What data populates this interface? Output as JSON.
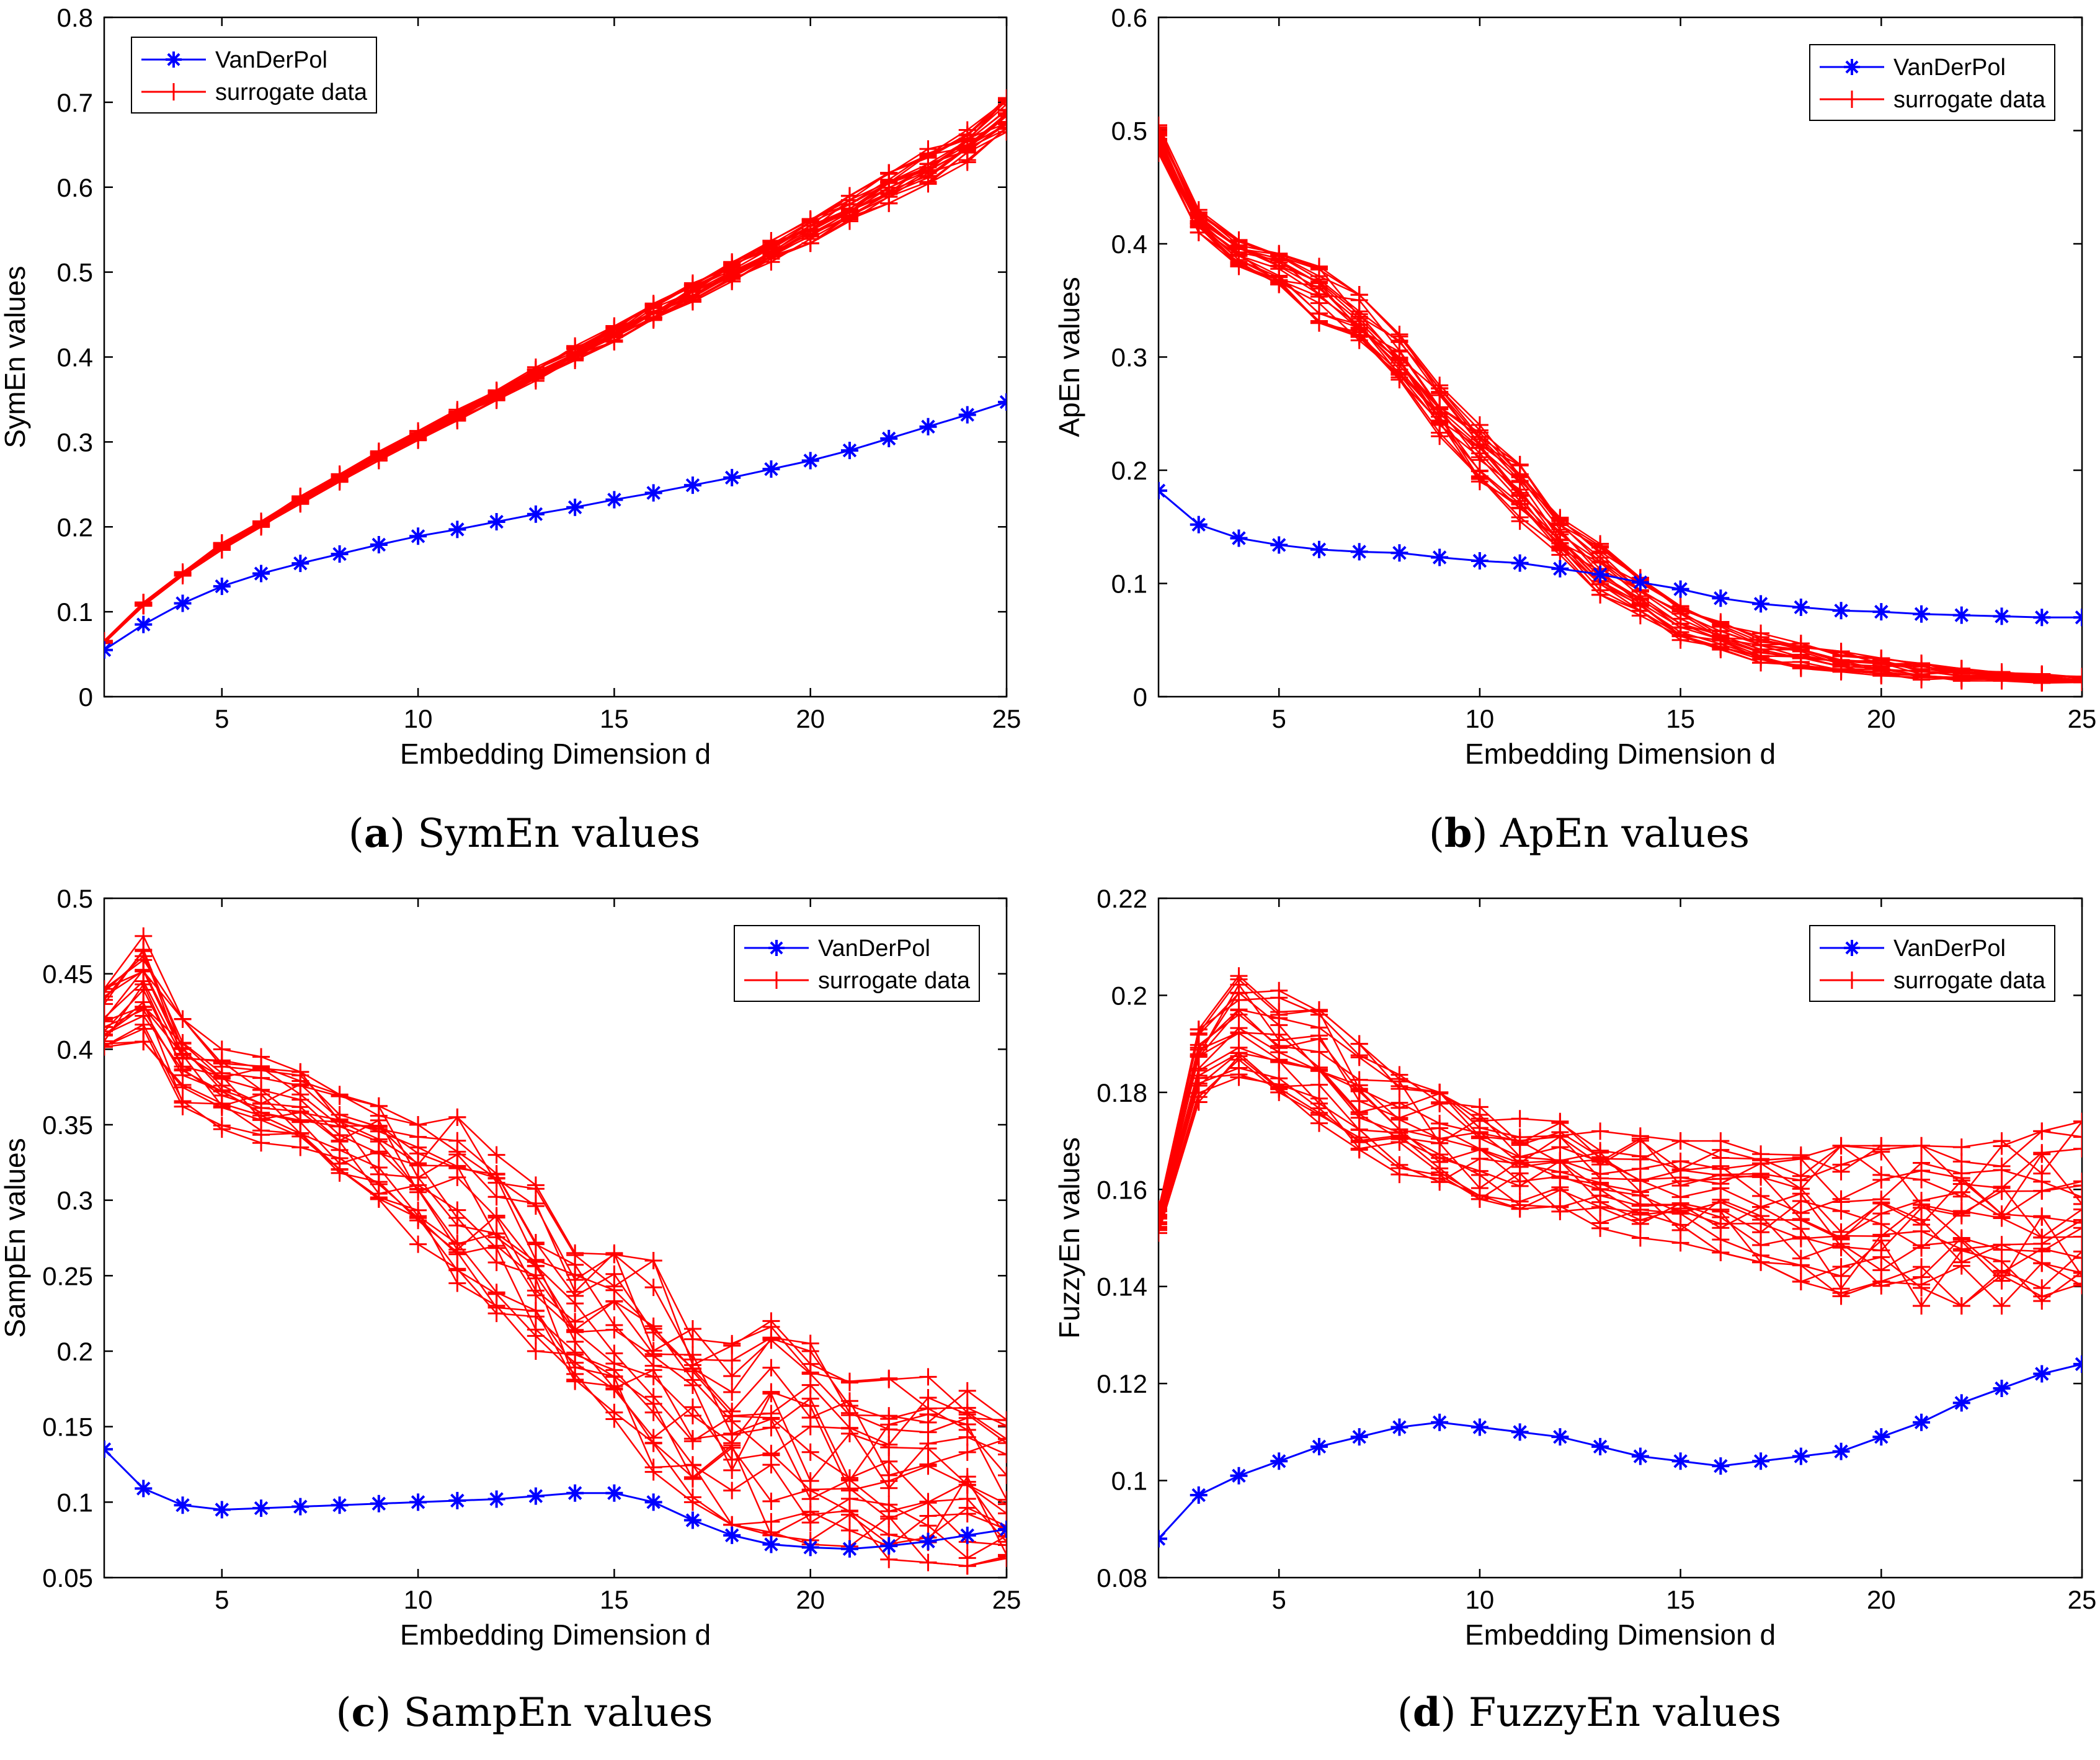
{
  "figure": {
    "colors": {
      "vanderpol": "#0000ff",
      "surrogate": "#ff0000",
      "axis": "#000000"
    }
  },
  "chart_data": [
    {
      "id": "a",
      "type": "line",
      "caption_letter": "a",
      "caption_text": "SymEn values",
      "xlabel": "Embedding Dimension d",
      "ylabel": "SymEn values",
      "xlim": [
        2,
        25
      ],
      "ylim": [
        0,
        0.8
      ],
      "xticks": [
        5,
        10,
        15,
        20,
        25
      ],
      "yticks": [
        0,
        0.1,
        0.2,
        0.3,
        0.4,
        0.5,
        0.6,
        0.7,
        0.8
      ],
      "legend_position": "top-left",
      "legend": [
        "VanDerPol",
        "surrogate data"
      ],
      "x": [
        2,
        3,
        4,
        5,
        6,
        7,
        8,
        9,
        10,
        11,
        12,
        13,
        14,
        15,
        16,
        17,
        18,
        19,
        20,
        21,
        22,
        23,
        24,
        25
      ],
      "vanderpol": [
        0.055,
        0.085,
        0.11,
        0.13,
        0.145,
        0.157,
        0.168,
        0.179,
        0.189,
        0.197,
        0.206,
        0.215,
        0.223,
        0.232,
        0.24,
        0.249,
        0.258,
        0.268,
        0.278,
        0.29,
        0.304,
        0.318,
        0.332,
        0.347
      ],
      "surrogate_envelope": {
        "low": [
          0.063,
          0.107,
          0.142,
          0.173,
          0.2,
          0.227,
          0.253,
          0.278,
          0.302,
          0.325,
          0.349,
          0.372,
          0.396,
          0.418,
          0.442,
          0.465,
          0.489,
          0.512,
          0.534,
          0.558,
          0.581,
          0.604,
          0.629,
          0.665
        ],
        "high": [
          0.066,
          0.111,
          0.147,
          0.181,
          0.207,
          0.236,
          0.262,
          0.289,
          0.313,
          0.338,
          0.363,
          0.388,
          0.413,
          0.437,
          0.463,
          0.487,
          0.512,
          0.537,
          0.563,
          0.59,
          0.617,
          0.645,
          0.671,
          0.705
        ]
      },
      "surrogate_count": 20
    },
    {
      "id": "b",
      "type": "line",
      "caption_letter": "b",
      "caption_text": "ApEn values",
      "xlabel": "Embedding Dimension d",
      "ylabel": "ApEn values",
      "xlim": [
        2,
        25
      ],
      "ylim": [
        0,
        0.6
      ],
      "xticks": [
        5,
        10,
        15,
        20,
        25
      ],
      "yticks": [
        0,
        0.1,
        0.2,
        0.3,
        0.4,
        0.5,
        0.6
      ],
      "legend_position": "top-right",
      "legend": [
        "VanDerPol",
        "surrogate data"
      ],
      "x": [
        2,
        3,
        4,
        5,
        6,
        7,
        8,
        9,
        10,
        11,
        12,
        13,
        14,
        15,
        16,
        17,
        18,
        19,
        20,
        21,
        22,
        23,
        24,
        25
      ],
      "vanderpol": [
        0.182,
        0.152,
        0.14,
        0.134,
        0.13,
        0.128,
        0.127,
        0.123,
        0.12,
        0.118,
        0.113,
        0.108,
        0.101,
        0.095,
        0.087,
        0.082,
        0.079,
        0.076,
        0.075,
        0.073,
        0.072,
        0.071,
        0.07,
        0.07
      ],
      "surrogate_envelope": {
        "low": [
          0.48,
          0.41,
          0.38,
          0.36,
          0.33,
          0.31,
          0.28,
          0.23,
          0.19,
          0.155,
          0.12,
          0.09,
          0.07,
          0.05,
          0.038,
          0.03,
          0.025,
          0.022,
          0.018,
          0.015,
          0.014,
          0.013,
          0.012,
          0.012
        ],
        "high": [
          0.505,
          0.43,
          0.405,
          0.395,
          0.38,
          0.355,
          0.32,
          0.275,
          0.24,
          0.205,
          0.165,
          0.135,
          0.105,
          0.08,
          0.066,
          0.056,
          0.047,
          0.04,
          0.034,
          0.03,
          0.026,
          0.023,
          0.02,
          0.018
        ]
      },
      "surrogate_count": 20
    },
    {
      "id": "c",
      "type": "line",
      "caption_letter": "c",
      "caption_text": "SampEn values",
      "xlabel": "Embedding Dimension d",
      "ylabel": "SampEn values",
      "xlim": [
        2,
        25
      ],
      "ylim": [
        0.05,
        0.5
      ],
      "xticks": [
        5,
        10,
        15,
        20,
        25
      ],
      "yticks": [
        0.05,
        0.1,
        0.15,
        0.2,
        0.25,
        0.3,
        0.35,
        0.4,
        0.45,
        0.5
      ],
      "legend_position": "top-right",
      "legend": [
        "VanDerPol",
        "surrogate data"
      ],
      "x": [
        2,
        3,
        4,
        5,
        6,
        7,
        8,
        9,
        10,
        11,
        12,
        13,
        14,
        15,
        16,
        17,
        18,
        19,
        20,
        21,
        22,
        23,
        24,
        25
      ],
      "vanderpol": [
        0.135,
        0.109,
        0.098,
        0.095,
        0.096,
        0.097,
        0.098,
        0.099,
        0.1,
        0.101,
        0.102,
        0.104,
        0.106,
        0.106,
        0.1,
        0.088,
        0.078,
        0.072,
        0.07,
        0.069,
        0.071,
        0.074,
        0.078,
        0.082
      ],
      "surrogate_envelope": {
        "low": [
          0.395,
          0.405,
          0.362,
          0.345,
          0.338,
          0.335,
          0.318,
          0.295,
          0.27,
          0.245,
          0.225,
          0.2,
          0.18,
          0.155,
          0.12,
          0.1,
          0.085,
          0.078,
          0.072,
          0.068,
          0.062,
          0.06,
          0.055,
          0.055
        ],
        "high": [
          0.44,
          0.475,
          0.42,
          0.4,
          0.395,
          0.385,
          0.37,
          0.37,
          0.35,
          0.355,
          0.33,
          0.31,
          0.265,
          0.265,
          0.26,
          0.22,
          0.205,
          0.22,
          0.21,
          0.18,
          0.182,
          0.183,
          0.18,
          0.155
        ]
      },
      "surrogate_count": 20
    },
    {
      "id": "d",
      "type": "line",
      "caption_letter": "d",
      "caption_text": "FuzzyEn values",
      "xlabel": "Embedding Dimension d",
      "ylabel": "FuzzyEn values",
      "xlim": [
        2,
        25
      ],
      "ylim": [
        0.08,
        0.22
      ],
      "xticks": [
        5,
        10,
        15,
        20,
        25
      ],
      "yticks": [
        0.08,
        0.1,
        0.12,
        0.14,
        0.16,
        0.18,
        0.2,
        0.22
      ],
      "legend_position": "top-right",
      "legend": [
        "VanDerPol",
        "surrogate data"
      ],
      "x": [
        2,
        3,
        4,
        5,
        6,
        7,
        8,
        9,
        10,
        11,
        12,
        13,
        14,
        15,
        16,
        17,
        18,
        19,
        20,
        21,
        22,
        23,
        24,
        25
      ],
      "vanderpol": [
        0.088,
        0.097,
        0.101,
        0.104,
        0.107,
        0.109,
        0.111,
        0.112,
        0.111,
        0.11,
        0.109,
        0.107,
        0.105,
        0.104,
        0.103,
        0.104,
        0.105,
        0.106,
        0.109,
        0.112,
        0.116,
        0.119,
        0.122,
        0.124
      ],
      "surrogate_envelope": {
        "low": [
          0.151,
          0.178,
          0.181,
          0.18,
          0.172,
          0.166,
          0.162,
          0.16,
          0.158,
          0.156,
          0.154,
          0.152,
          0.15,
          0.149,
          0.147,
          0.145,
          0.141,
          0.138,
          0.137,
          0.136,
          0.136,
          0.136,
          0.137,
          0.138
        ],
        "high": [
          0.156,
          0.193,
          0.204,
          0.201,
          0.197,
          0.19,
          0.185,
          0.18,
          0.177,
          0.175,
          0.174,
          0.172,
          0.171,
          0.17,
          0.17,
          0.169,
          0.169,
          0.169,
          0.169,
          0.169,
          0.169,
          0.17,
          0.172,
          0.174
        ]
      },
      "surrogate_count": 20
    }
  ]
}
